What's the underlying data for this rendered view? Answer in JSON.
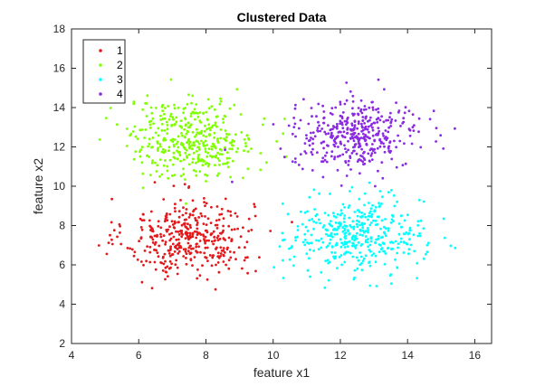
{
  "chart_data": {
    "type": "scatter",
    "title": "Clustered Data",
    "xlabel": "feature x1",
    "ylabel": "feature x2",
    "xlim": [
      4,
      16.5
    ],
    "ylim": [
      2,
      18
    ],
    "xticks": [
      4,
      6,
      8,
      10,
      12,
      14,
      16
    ],
    "yticks": [
      2,
      4,
      6,
      8,
      10,
      12,
      14,
      16,
      18
    ],
    "grid": false,
    "legend": "top-left",
    "series": [
      {
        "name": "1",
        "color": "#e31a1c",
        "center": [
          7.5,
          7.4
        ],
        "spread": [
          0.95,
          1.0
        ],
        "points_approx": 400
      },
      {
        "name": "2",
        "color": "#7fff00",
        "center": [
          7.6,
          12.4
        ],
        "spread": [
          0.95,
          1.0
        ],
        "points_approx": 400
      },
      {
        "name": "3",
        "color": "#00ffff",
        "center": [
          12.5,
          7.5
        ],
        "spread": [
          1.0,
          0.95
        ],
        "points_approx": 400
      },
      {
        "name": "4",
        "color": "#8a2be2",
        "center": [
          12.5,
          12.6
        ],
        "spread": [
          0.95,
          0.85
        ],
        "points_approx": 400
      }
    ]
  }
}
